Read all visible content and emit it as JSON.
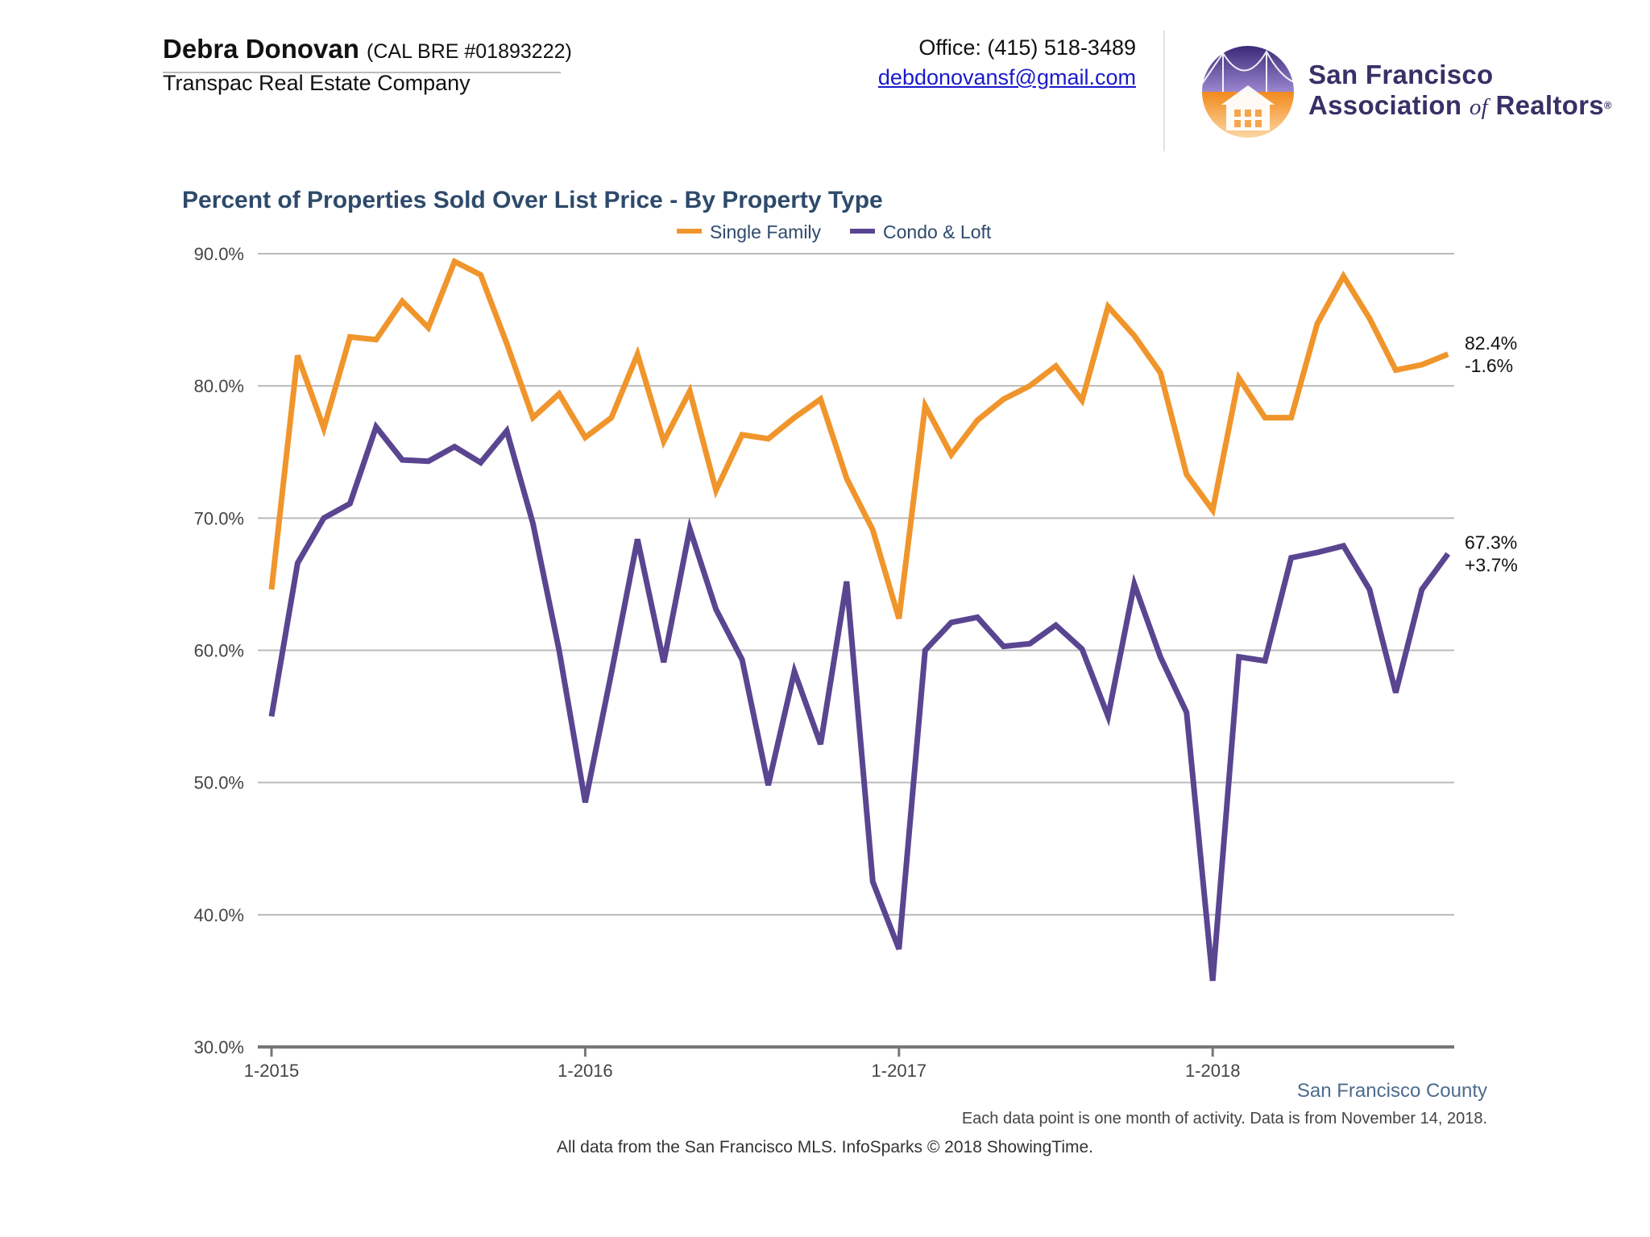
{
  "header": {
    "agent_name": "Debra Donovan",
    "agent_license": "(CAL BRE #01893222)",
    "agent_company": "Transpac Real Estate Company",
    "office_phone": "Office: (415) 518-3489",
    "email": "debdonovansf@gmail.com"
  },
  "logo": {
    "line1": "San Francisco",
    "line2_start": "Association",
    "line2_of": "of",
    "line2_end": "Realtors",
    "trademark": "®"
  },
  "colors": {
    "single_family": "#f0952b",
    "condo_loft": "#5a4591",
    "title": "#2e4a6b",
    "grid": "#bbbbbb",
    "axis": "#777777"
  },
  "chart_data": {
    "type": "line",
    "title": "Percent of Properties Sold Over List Price - By Property Type",
    "legend_position": "top-center",
    "grid": true,
    "xlabel": "",
    "ylabel": "",
    "x_ticks": [
      "1-2015",
      "1-2016",
      "1-2017",
      "1-2018"
    ],
    "x_start": "2015-01",
    "x_end": "2018-10",
    "ylim": [
      30,
      90
    ],
    "y_ticks": [
      "30.0%",
      "40.0%",
      "50.0%",
      "60.0%",
      "70.0%",
      "80.0%",
      "90.0%"
    ],
    "series": [
      {
        "name": "Single Family",
        "values": [
          64.6,
          82.3,
          76.8,
          83.7,
          83.5,
          86.4,
          84.4,
          89.4,
          88.4,
          83.2,
          77.6,
          79.4,
          76.1,
          77.6,
          82.4,
          75.8,
          79.6,
          72.1,
          76.3,
          76.0,
          77.6,
          79.0,
          73.0,
          69.1,
          62.4,
          78.5,
          74.8,
          77.4,
          79.0,
          80.0,
          81.5,
          78.9,
          86.0,
          83.8,
          81.0,
          73.3,
          70.6,
          80.6,
          77.6,
          77.6,
          84.7,
          88.3,
          85.1,
          81.2,
          81.6,
          82.4
        ],
        "end_label": "82.4%",
        "change_label": "-1.6%"
      },
      {
        "name": "Condo & Loft",
        "values": [
          55.0,
          66.6,
          70.0,
          71.1,
          76.9,
          74.4,
          74.3,
          75.4,
          74.2,
          76.6,
          69.6,
          60.0,
          48.5,
          58.3,
          68.4,
          59.1,
          69.2,
          63.1,
          59.3,
          49.8,
          58.4,
          52.9,
          65.2,
          42.5,
          37.4,
          60.0,
          62.1,
          62.5,
          60.3,
          60.5,
          61.9,
          60.1,
          55.0,
          65.0,
          59.5,
          55.3,
          35.0,
          59.5,
          59.2,
          67.0,
          67.4,
          67.9,
          64.6,
          56.8,
          64.6,
          67.3
        ],
        "end_label": "67.3%",
        "change_label": "+3.7%"
      }
    ],
    "region_label": "San Francisco County",
    "note": "Each data point is one month of activity. Data is from November 14, 2018."
  },
  "footer": {
    "source": "All data from the San Francisco MLS. InfoSparks © 2018 ShowingTime."
  }
}
